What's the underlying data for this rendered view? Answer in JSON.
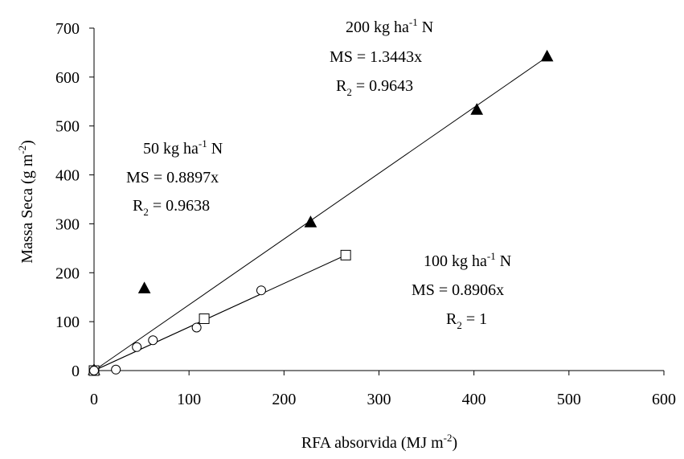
{
  "chart_data": {
    "type": "scatter",
    "xlabel": {
      "base": "RFA absorvida (MJ m",
      "sup": "-2",
      "end": ")"
    },
    "ylabel": {
      "base": "Massa Seca (g m",
      "sup": "-2",
      "end": ")"
    },
    "xlim": [
      0,
      600
    ],
    "ylim": [
      0,
      700
    ],
    "x_ticks": [
      0,
      100,
      200,
      300,
      400,
      500,
      600
    ],
    "y_ticks": [
      0,
      100,
      200,
      300,
      400,
      500,
      600,
      700
    ],
    "grid": false,
    "series": [
      {
        "marker": "triangle-filled",
        "points": [
          [
            0,
            0
          ],
          [
            53,
            167
          ],
          [
            228,
            302
          ],
          [
            403,
            532
          ],
          [
            477,
            641
          ]
        ],
        "fit_slope": 1.3443,
        "fit_x_range": [
          0,
          477
        ]
      },
      {
        "marker": "square-open",
        "points": [
          [
            0,
            0
          ],
          [
            116,
            106
          ],
          [
            265,
            236
          ]
        ],
        "fit_slope": 0.8906,
        "fit_x_range": [
          0,
          265
        ]
      },
      {
        "marker": "circle-open",
        "points": [
          [
            0,
            0
          ],
          [
            23,
            2
          ],
          [
            45,
            48
          ],
          [
            62,
            62
          ],
          [
            108,
            88
          ],
          [
            176,
            164
          ]
        ],
        "fit_slope": 0.8897,
        "fit_x_range": [
          0,
          176
        ]
      }
    ],
    "annotations": [
      {
        "line1": {
          "base": "200 kg ha",
          "sup": "-1",
          "end": " N"
        },
        "line2": "MS = 1.3443x",
        "line3": {
          "base": "R",
          "sub": "2",
          "end": " = 0.9643"
        }
      },
      {
        "line1": {
          "base": "50 kg ha",
          "sup": "-1",
          "end": " N"
        },
        "line2": "MS = 0.8897x",
        "line3": {
          "base": "R",
          "sub": "2",
          "end": " = 0.9638"
        }
      },
      {
        "line1": {
          "base": "100 kg ha",
          "sup": "-1",
          "end": " N"
        },
        "line2": "MS = 0.8906x",
        "line3": {
          "base": "R",
          "sub": "2",
          "end": " = 1"
        }
      }
    ]
  }
}
